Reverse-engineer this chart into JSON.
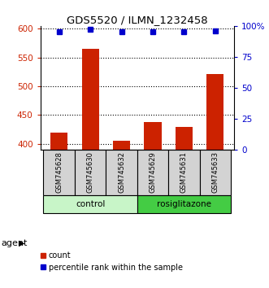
{
  "title": "GDS5520 / ILMN_1232458",
  "samples": [
    "GSM745628",
    "GSM745630",
    "GSM745632",
    "GSM745629",
    "GSM745631",
    "GSM745633"
  ],
  "counts": [
    420,
    565,
    405,
    438,
    430,
    522
  ],
  "percentiles": [
    95,
    97,
    95,
    95,
    95,
    96
  ],
  "group_configs": [
    {
      "indices": [
        0,
        1,
        2
      ],
      "label": "control",
      "color": "#c8f5c8"
    },
    {
      "indices": [
        3,
        4,
        5
      ],
      "label": "rosiglitazone",
      "color": "#44cc44"
    }
  ],
  "bar_color": "#cc2200",
  "dot_color": "#0000cc",
  "ylim_left": [
    390,
    605
  ],
  "ylim_right": [
    0,
    100
  ],
  "yticks_left": [
    400,
    450,
    500,
    550,
    600
  ],
  "yticks_right": [
    0,
    25,
    50,
    75,
    100
  ],
  "ytick_labels_right": [
    "0",
    "25",
    "50",
    "75",
    "100%"
  ],
  "label_box_color": "#d3d3d3",
  "bar_width": 0.55,
  "agent_label": "agent"
}
